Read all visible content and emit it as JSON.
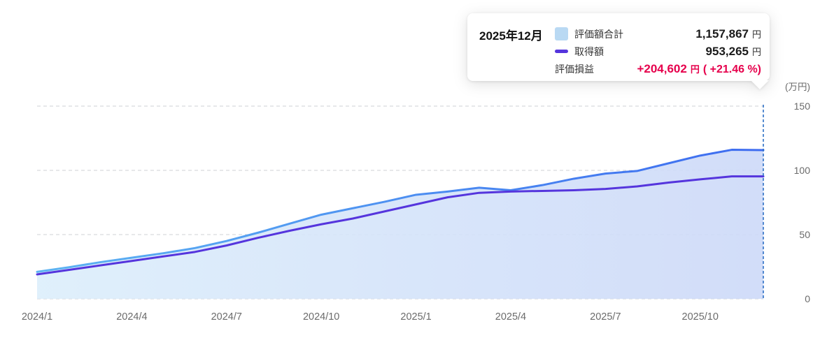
{
  "tooltip": {
    "date": "2025年12月",
    "rows": [
      {
        "label": "評価額合計",
        "value": "1,157,867",
        "unit": "円",
        "swatch": "area"
      },
      {
        "label": "取得額",
        "value": "953,265",
        "unit": "円",
        "swatch": "line"
      },
      {
        "label": "評価損益",
        "value": "+204,602",
        "unit": "円",
        "pct": "( +21.46 %)"
      }
    ]
  },
  "colors": {
    "valuation_swatch": "#b9d9f3",
    "valuation_stroke_start": "#5db4f2",
    "valuation_stroke_end": "#3d6bf0",
    "valuation_fill_start": "#dceefb",
    "valuation_fill_end": "#cdd9f8",
    "cost_line": "#5535dd",
    "loss_gain_red": "#e6004c",
    "gridline": "#cfd2d6",
    "crosshair": "#2d6fc5",
    "tick_text": "#6b6b6b"
  },
  "chart_data": {
    "type": "area",
    "title": "",
    "xlabel": "",
    "ylabel": "(万円)",
    "ylim": [
      0,
      150
    ],
    "y_ticks": [
      0,
      50,
      100,
      150
    ],
    "grid": "horizontal-dashed",
    "legend_position": "in-tooltip",
    "x": [
      "2024/1",
      "2024/2",
      "2024/3",
      "2024/4",
      "2024/5",
      "2024/6",
      "2024/7",
      "2024/8",
      "2024/9",
      "2024/10",
      "2024/11",
      "2024/12",
      "2025/1",
      "2025/2",
      "2025/3",
      "2025/4",
      "2025/5",
      "2025/6",
      "2025/7",
      "2025/8",
      "2025/9",
      "2025/10",
      "2025/11",
      "2025/12"
    ],
    "x_tick_labels": [
      "2024/1",
      "2024/4",
      "2024/7",
      "2024/10",
      "2025/1",
      "2025/4",
      "2025/7",
      "2025/10"
    ],
    "crosshair_x": "2025/12",
    "series": [
      {
        "name": "評価額合計",
        "style": "area",
        "unit": "万円",
        "values": [
          21,
          24.5,
          28.5,
          32,
          35.5,
          39.5,
          45,
          51.5,
          58.5,
          65.5,
          70.5,
          75.5,
          81,
          83.5,
          86.5,
          84.5,
          88.5,
          93.5,
          97.5,
          99.5,
          105.5,
          111.5,
          116,
          115.79
        ]
      },
      {
        "name": "取得額",
        "style": "line",
        "unit": "万円",
        "values": [
          19,
          22.5,
          26,
          29.5,
          33,
          36.5,
          41.5,
          47.5,
          53,
          58,
          62.5,
          68,
          73.5,
          79,
          82.5,
          83.5,
          84,
          84.5,
          85.5,
          87.5,
          90.5,
          93,
          95.3,
          95.33
        ]
      }
    ],
    "final_values": {
      "評価額合計_円": "1,157,867",
      "取得額_円": "953,265",
      "評価損益_円": "+204,602",
      "評価損益_pct": "+21.46"
    }
  }
}
